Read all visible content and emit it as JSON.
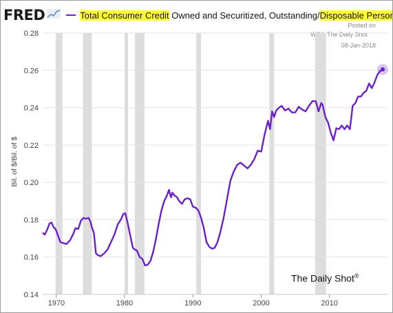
{
  "header": {
    "logo": "FRED",
    "logo_icon": "line-chart-icon",
    "legend_part1": "Total Consumer Credit",
    "legend_part2": " Owned and Securitized, Outstanding/",
    "legend_part3": "Disposable Personal Income",
    "legend_color": "#6a1fc8"
  },
  "credits": {
    "line1": "Posted on",
    "line2": "WSJ: The Daily Shot",
    "line3": "08-Jan-2018"
  },
  "watermark": "The Daily Shot",
  "watermark_mark": "®",
  "chart_data": {
    "type": "line",
    "title": "Total Consumer Credit Owned and Securitized, Outstanding/Disposable Personal Income",
    "ylabel": "Bil. of $/Bil. of $",
    "xlabel": "",
    "xlim": [
      1968,
      2018.5
    ],
    "ylim": [
      0.14,
      0.28
    ],
    "yticks": [
      "0.14",
      "0.16",
      "0.18",
      "0.20",
      "0.22",
      "0.24",
      "0.26",
      "0.28"
    ],
    "xticks": [
      "1970",
      "1980",
      "1990",
      "2000",
      "2010"
    ],
    "grid": "horizontal",
    "line_color": "#6a1fc8",
    "recession_color": "#dddddd",
    "recessions": [
      [
        1969.9,
        1970.9
      ],
      [
        1973.9,
        1975.2
      ],
      [
        1980.0,
        1980.5
      ],
      [
        1981.5,
        1982.9
      ],
      [
        1990.5,
        1991.2
      ],
      [
        2001.2,
        2001.9
      ],
      [
        2007.9,
        2009.5
      ]
    ],
    "series": [
      {
        "x": [
          1968.0,
          1968.3,
          1968.7,
          1969.0,
          1969.3,
          1969.6,
          1969.9,
          1970.3,
          1970.6,
          1971.0,
          1971.5,
          1972.0,
          1972.5,
          1972.8,
          1973.2,
          1973.6,
          1974.0,
          1974.3,
          1974.7,
          1975.0,
          1975.2,
          1975.5,
          1975.8,
          1976.1,
          1976.5,
          1977.0,
          1977.5,
          1978.0,
          1978.5,
          1979.0,
          1979.5,
          1979.8,
          1980.1,
          1980.4,
          1980.8,
          1981.2,
          1981.5,
          1981.8,
          1982.2,
          1982.6,
          1983.0,
          1983.4,
          1983.8,
          1984.2,
          1984.6,
          1985.0,
          1985.4,
          1985.8,
          1986.2,
          1986.5,
          1986.8,
          1987.0,
          1987.3,
          1987.7,
          1988.0,
          1988.4,
          1988.8,
          1989.2,
          1989.6,
          1990.0,
          1990.4,
          1990.8,
          1991.2,
          1991.6,
          1992.0,
          1992.4,
          1992.8,
          1993.2,
          1993.6,
          1994.0,
          1994.5,
          1995.0,
          1995.5,
          1996.0,
          1996.5,
          1997.0,
          1997.5,
          1998.0,
          1998.5,
          1999.0,
          1999.5,
          2000.0,
          2000.5,
          2001.0,
          2001.3,
          2001.6,
          2001.9,
          2002.2,
          2002.6,
          2003.0,
          2003.5,
          2004.0,
          2004.5,
          2005.0,
          2005.5,
          2006.0,
          2006.5,
          2007.0,
          2007.5,
          2008.0,
          2008.4,
          2008.8,
          2009.0,
          2009.4,
          2009.8,
          2010.2,
          2010.6,
          2011.0,
          2011.4,
          2011.8,
          2012.2,
          2012.6,
          2013.0,
          2013.4,
          2013.8,
          2014.2,
          2014.6,
          2015.0,
          2015.4,
          2015.8,
          2016.2,
          2016.6,
          2017.0,
          2017.4,
          2017.8
        ],
        "y": [
          0.173,
          0.172,
          0.175,
          0.178,
          0.1785,
          0.176,
          0.175,
          0.171,
          0.168,
          0.1675,
          0.167,
          0.169,
          0.1725,
          0.1755,
          0.175,
          0.1795,
          0.181,
          0.1805,
          0.181,
          0.179,
          0.176,
          0.173,
          0.162,
          0.161,
          0.1605,
          0.162,
          0.164,
          0.168,
          0.172,
          0.1775,
          0.1805,
          0.183,
          0.1835,
          0.179,
          0.172,
          0.165,
          0.164,
          0.1635,
          0.16,
          0.159,
          0.1555,
          0.156,
          0.158,
          0.163,
          0.17,
          0.178,
          0.185,
          0.19,
          0.193,
          0.196,
          0.192,
          0.1945,
          0.193,
          0.192,
          0.19,
          0.1885,
          0.191,
          0.1915,
          0.191,
          0.187,
          0.1865,
          0.185,
          0.181,
          0.1755,
          0.168,
          0.1655,
          0.1645,
          0.165,
          0.168,
          0.173,
          0.181,
          0.191,
          0.201,
          0.206,
          0.2095,
          0.2105,
          0.209,
          0.2075,
          0.2095,
          0.2125,
          0.217,
          0.2165,
          0.2255,
          0.233,
          0.2285,
          0.238,
          0.235,
          0.2385,
          0.24,
          0.241,
          0.2385,
          0.2395,
          0.2375,
          0.2375,
          0.2405,
          0.239,
          0.238,
          0.241,
          0.2435,
          0.2435,
          0.238,
          0.2425,
          0.2415,
          0.235,
          0.232,
          0.2265,
          0.2225,
          0.229,
          0.2285,
          0.2305,
          0.2285,
          0.2305,
          0.2285,
          0.241,
          0.2425,
          0.246,
          0.246,
          0.248,
          0.249,
          0.253,
          0.2505,
          0.2535,
          0.2575,
          0.2595,
          0.2605
        ]
      }
    ]
  }
}
